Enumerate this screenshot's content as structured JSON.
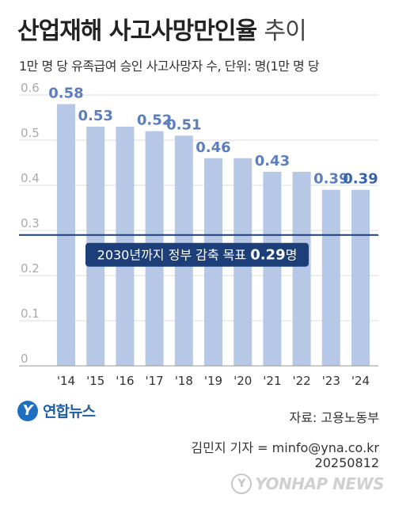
{
  "header": {
    "title_main": "산업재해 사고사망만인율",
    "title_suffix": "추이",
    "subtitle": "1만 명 당 유족급여 승인 사고사망자 수, 단위: 명(1만 명 당"
  },
  "chart_data": {
    "type": "bar",
    "categories": [
      "'14",
      "'15",
      "'16",
      "'17",
      "'18",
      "'19",
      "'20",
      "'21",
      "'22",
      "'23",
      "'24"
    ],
    "values": [
      0.58,
      0.53,
      0.53,
      0.52,
      0.51,
      0.46,
      0.46,
      0.43,
      0.43,
      0.39,
      0.39
    ],
    "data_labels": [
      "0.58",
      "0.53",
      "",
      "0.52",
      "0.51",
      "0.46",
      "",
      "0.43",
      "",
      "0.39",
      "0.39"
    ],
    "ylim": [
      0,
      0.6
    ],
    "yticks": [
      "0",
      "0.1",
      "0.2",
      "0.3",
      "0.4",
      "0.5",
      "0.6"
    ],
    "grid": true,
    "target_line": {
      "value": 0.29,
      "label_prefix": "2030년까지 정부 감축 목표 ",
      "label_value": "0.29",
      "label_suffix": "명"
    },
    "colors": {
      "bar": "#b7c8e6",
      "label": "#5b7fbe",
      "label_last": "#3563ad",
      "target": "#1c3f7a",
      "grid": "#dddddd",
      "tick": "#aaaaaa"
    }
  },
  "footer": {
    "logo_text": "연합뉴스",
    "source": "자료: 고용노동부",
    "credit_line1": "김민지 기자 = minfo@yna.co.kr",
    "credit_line2": "20250812",
    "watermark_text": "YONHAP NEWS"
  }
}
